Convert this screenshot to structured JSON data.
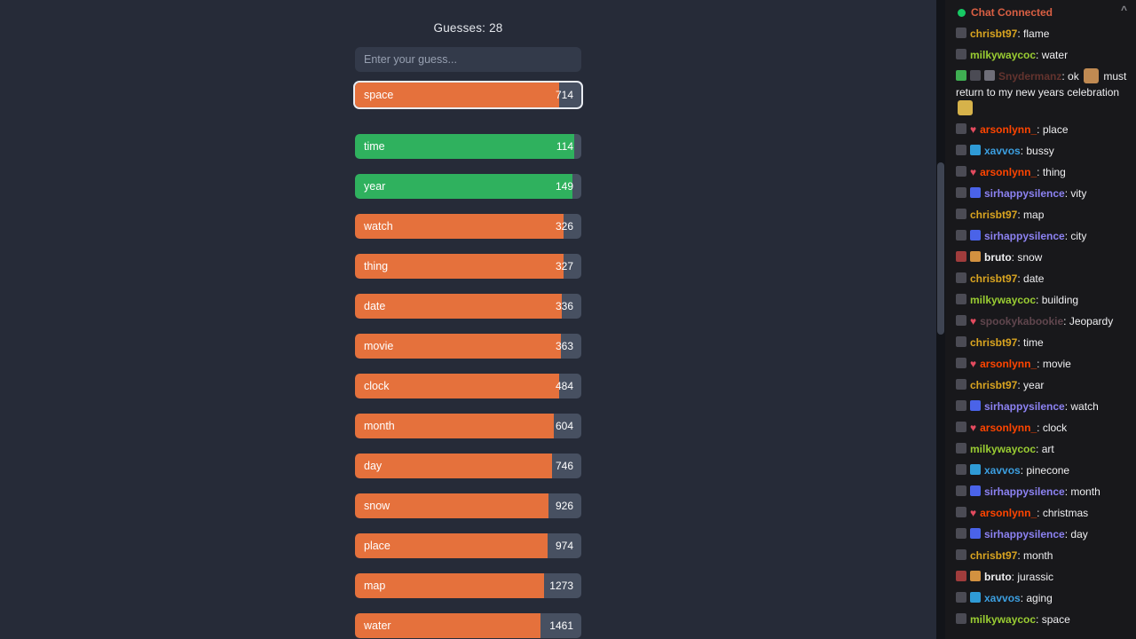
{
  "colors": {
    "page_bg": "#262B38",
    "chat_bg": "#18181B",
    "green": "#2FB15E",
    "orange": "#E5713C",
    "bar_track": "#475061",
    "highlight_border": "#E9ECF2",
    "connected_dot": "#17C964",
    "connected_text": "#D95F43"
  },
  "game": {
    "guesses_label": "Guesses: 28",
    "input_placeholder": "Enter your guess...",
    "bars": [
      {
        "word": "space",
        "rank": "714",
        "fill_pct": 90,
        "color": "orange",
        "highlighted": true
      },
      {
        "word": "time",
        "rank": "114",
        "fill_pct": 97,
        "color": "green"
      },
      {
        "word": "year",
        "rank": "149",
        "fill_pct": 96,
        "color": "green"
      },
      {
        "word": "watch",
        "rank": "326",
        "fill_pct": 92,
        "color": "orange"
      },
      {
        "word": "thing",
        "rank": "327",
        "fill_pct": 92,
        "color": "orange"
      },
      {
        "word": "date",
        "rank": "336",
        "fill_pct": 91.5,
        "color": "orange"
      },
      {
        "word": "movie",
        "rank": "363",
        "fill_pct": 91,
        "color": "orange"
      },
      {
        "word": "clock",
        "rank": "484",
        "fill_pct": 90,
        "color": "orange"
      },
      {
        "word": "month",
        "rank": "604",
        "fill_pct": 88,
        "color": "orange"
      },
      {
        "word": "day",
        "rank": "746",
        "fill_pct": 87,
        "color": "orange"
      },
      {
        "word": "snow",
        "rank": "926",
        "fill_pct": 85.5,
        "color": "orange"
      },
      {
        "word": "place",
        "rank": "974",
        "fill_pct": 85,
        "color": "orange"
      },
      {
        "word": "map",
        "rank": "1273",
        "fill_pct": 83.5,
        "color": "orange"
      },
      {
        "word": "water",
        "rank": "1461",
        "fill_pct": 82,
        "color": "orange"
      }
    ]
  },
  "chat": {
    "header": {
      "status_label": "Chat Connected"
    },
    "users": {
      "chrisbt97": {
        "color": "#DAA520",
        "badges": [
          {
            "name": "channel-badge-icon",
            "color": "#4B4B54"
          }
        ]
      },
      "milkywaycoc": {
        "color": "#9ACD32",
        "badges": [
          {
            "name": "channel-badge-icon",
            "color": "#4B4B54"
          }
        ]
      },
      "Snydermanz": {
        "color": "#A14A3E",
        "faded": true,
        "badges": [
          {
            "name": "moderator-badge-icon",
            "color": "#3FAE52"
          },
          {
            "name": "channel-badge-icon",
            "color": "#4B4B54"
          },
          {
            "name": "subscriber-badge-icon",
            "color": "#6E6E78"
          }
        ]
      },
      "arsonlynn_": {
        "color": "#FF4500",
        "badges": [
          {
            "name": "channel-badge-icon",
            "color": "#4B4B54"
          },
          {
            "name": "heart-badge-icon",
            "shape": "heart",
            "color": "#E34B5F"
          }
        ]
      },
      "xavvos": {
        "color": "#3C9FE0",
        "badges": [
          {
            "name": "channel-badge-icon",
            "color": "#4B4B54"
          },
          {
            "name": "subscriber-badge-icon",
            "color": "#2F9BD6"
          }
        ]
      },
      "sirhappysilence": {
        "color": "#8C82F2",
        "badges": [
          {
            "name": "channel-badge-icon",
            "color": "#4B4B54"
          },
          {
            "name": "subscriber-badge-icon",
            "color": "#4A63E8"
          }
        ]
      },
      "bruto": {
        "color": "#EFEFF1",
        "badges": [
          {
            "name": "bits-badge-icon",
            "color": "#A03C3C"
          },
          {
            "name": "subscriber-badge-icon",
            "color": "#D29140"
          }
        ]
      },
      "spookykabookie": {
        "color": "#9A6B77",
        "faded": true,
        "badges": [
          {
            "name": "channel-badge-icon",
            "color": "#4B4B54"
          },
          {
            "name": "heart-badge-icon",
            "shape": "heart",
            "color": "#E34B5F"
          }
        ]
      }
    },
    "messages": [
      {
        "user": "chrisbt97",
        "text": "flame"
      },
      {
        "user": "milkywaycoc",
        "text": "water"
      },
      {
        "user": "Snydermanz",
        "tokens": [
          {
            "t": "text",
            "v": "ok "
          },
          {
            "t": "emote",
            "name": "monkey-emote-icon",
            "color": "#C08A52"
          },
          {
            "t": "text",
            "v": " must return to my new years celebration "
          },
          {
            "t": "emote",
            "name": "party-emote-icon",
            "color": "#D6B24A"
          }
        ]
      },
      {
        "user": "arsonlynn_",
        "text": "place"
      },
      {
        "user": "xavvos",
        "text": "bussy"
      },
      {
        "user": "arsonlynn_",
        "text": "thing"
      },
      {
        "user": "sirhappysilence",
        "text": "vity"
      },
      {
        "user": "chrisbt97",
        "text": "map"
      },
      {
        "user": "sirhappysilence",
        "text": "city"
      },
      {
        "user": "bruto",
        "text": "snow"
      },
      {
        "user": "chrisbt97",
        "text": "date"
      },
      {
        "user": "milkywaycoc",
        "text": "building"
      },
      {
        "user": "spookykabookie",
        "text": "Jeopardy"
      },
      {
        "user": "chrisbt97",
        "text": "time"
      },
      {
        "user": "arsonlynn_",
        "text": "movie"
      },
      {
        "user": "chrisbt97",
        "text": "year"
      },
      {
        "user": "sirhappysilence",
        "text": "watch"
      },
      {
        "user": "arsonlynn_",
        "text": "clock"
      },
      {
        "user": "milkywaycoc",
        "text": "art"
      },
      {
        "user": "xavvos",
        "text": "pinecone"
      },
      {
        "user": "sirhappysilence",
        "text": "month"
      },
      {
        "user": "arsonlynn_",
        "text": "christmas"
      },
      {
        "user": "sirhappysilence",
        "text": "day"
      },
      {
        "user": "chrisbt97",
        "text": "month"
      },
      {
        "user": "bruto",
        "text": "jurassic"
      },
      {
        "user": "xavvos",
        "text": "aging"
      },
      {
        "user": "milkywaycoc",
        "text": "space"
      }
    ]
  }
}
